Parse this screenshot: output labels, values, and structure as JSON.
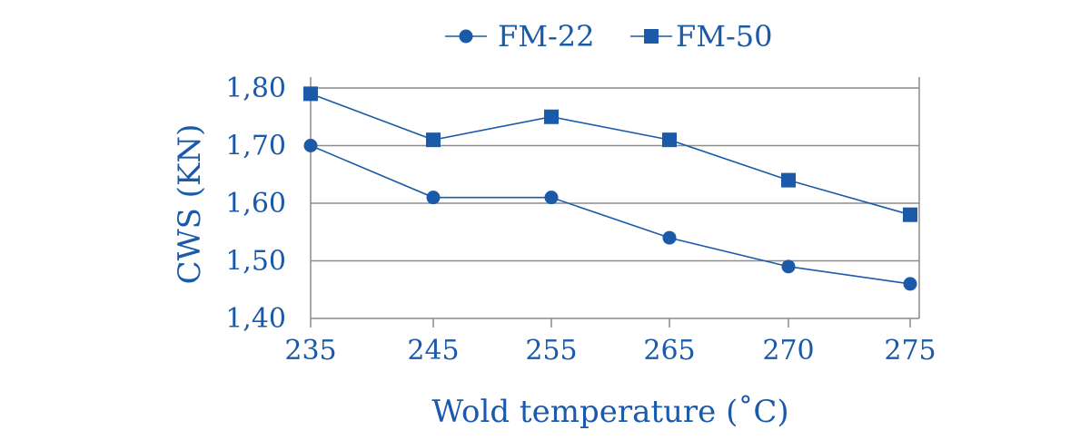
{
  "chart_data": {
    "type": "line",
    "categories": [
      "235",
      "245",
      "255",
      "265",
      "270",
      "275"
    ],
    "series": [
      {
        "name": "FM-22",
        "marker": "circle",
        "values": [
          1.7,
          1.61,
          1.61,
          1.54,
          1.49,
          1.46
        ]
      },
      {
        "name": "FM-50",
        "marker": "square",
        "values": [
          1.79,
          1.71,
          1.75,
          1.71,
          1.64,
          1.58
        ]
      }
    ],
    "title": "",
    "xlabel": "Wold temperature (˚C)",
    "ylabel": "CWS (KN)",
    "ylim": [
      1.4,
      1.8
    ],
    "yticks": [
      "1,40",
      "1,50",
      "1,60",
      "1,70",
      "1,80"
    ],
    "grid": "horizontal",
    "legend_position": "top",
    "colors": {
      "series": "#1a5aa8",
      "text": "#1a5aa8",
      "grid": "#8c8c8c",
      "axis": "#8c8c8c"
    }
  }
}
